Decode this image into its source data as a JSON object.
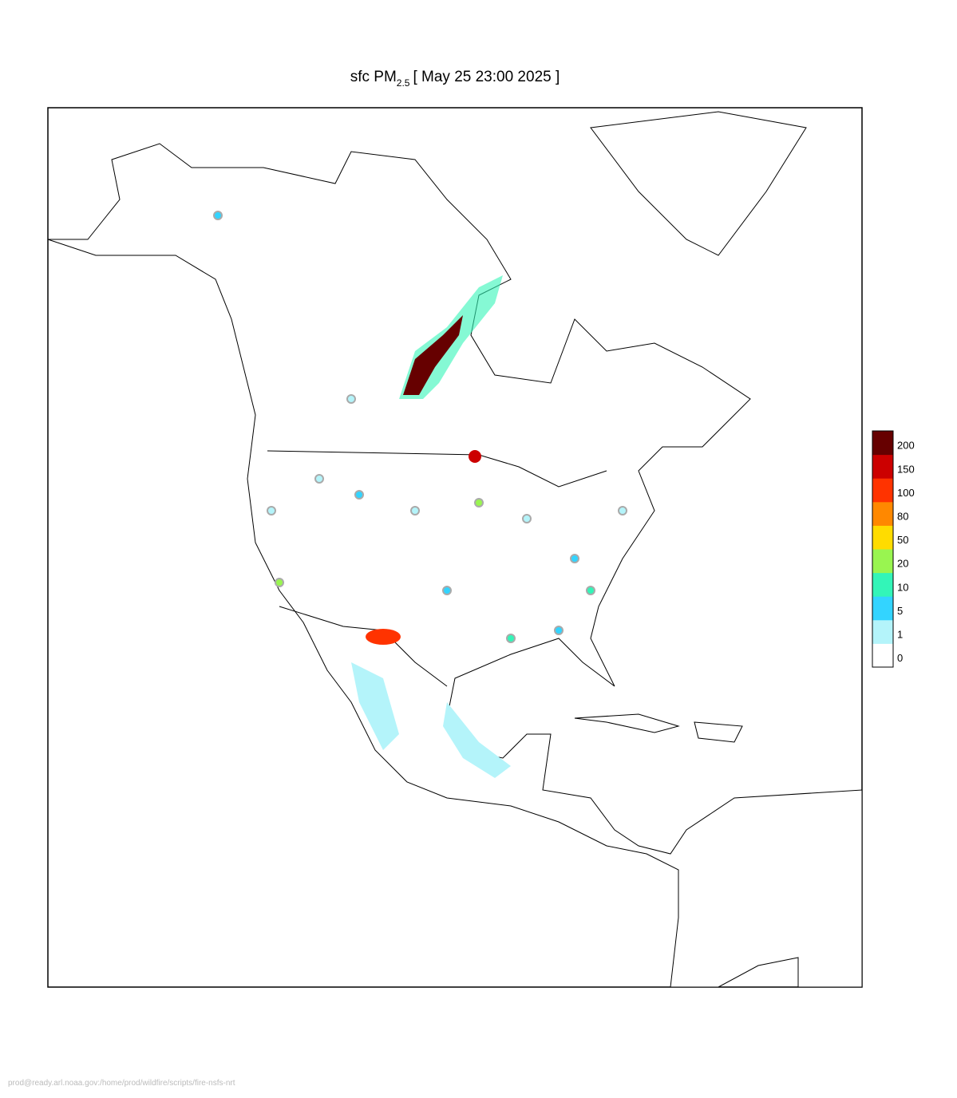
{
  "title": {
    "prefix": "sfc PM",
    "subscript": "2.5",
    "suffix": "[ May 25 23:00 2025 ]"
  },
  "legend": {
    "levels": [
      0,
      1,
      5,
      10,
      20,
      50,
      80,
      100,
      150,
      200
    ],
    "colors": [
      "#ffffff",
      "#b4f4fa",
      "#33d4ff",
      "#33f5b8",
      "#99f550",
      "#ffdc00",
      "#ff8800",
      "#ff3300",
      "#cc0000",
      "#660000"
    ]
  },
  "footer": "prod@ready.arl.noaa.gov:/home/prod/wildfire/scripts/fire-nsfs-nrt"
}
